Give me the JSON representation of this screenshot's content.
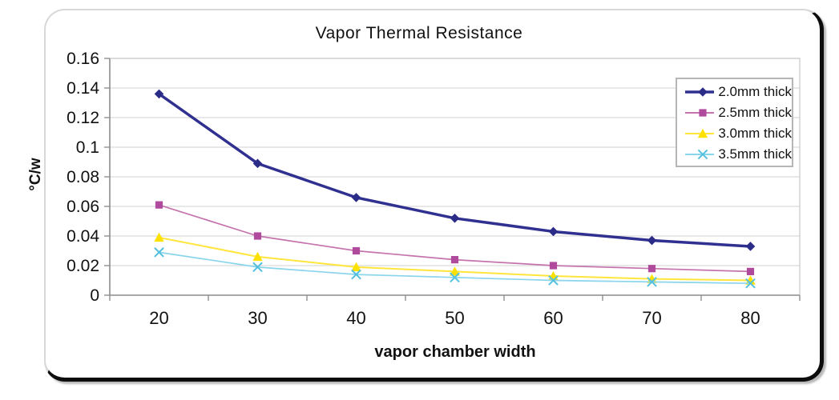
{
  "chart_data": {
    "type": "line",
    "title": "Vapor Thermal Resistance",
    "xlabel": "vapor chamber width",
    "ylabel": "°C/w",
    "categories": [
      20,
      30,
      40,
      50,
      60,
      70,
      80
    ],
    "ylim": [
      0,
      0.16
    ],
    "ytick_step": 0.02,
    "ytick_labels": [
      "0.16",
      "0.14",
      "0.12",
      "0.1",
      "0.08",
      "0.06",
      "0.04",
      "0.02",
      "0"
    ],
    "grid": true,
    "legend_position": "inside-top-right",
    "series": [
      {
        "name": "2.0mm thick",
        "marker": "diamond",
        "marker_color": "#2B2C88",
        "line_color": "#2F3090",
        "line_width": 3.5,
        "values": [
          0.136,
          0.089,
          0.066,
          0.052,
          0.043,
          0.037,
          0.033
        ]
      },
      {
        "name": "2.5mm thick",
        "marker": "square",
        "marker_color": "#B04A9D",
        "line_color": "#C573AC",
        "line_width": 1.7,
        "values": [
          0.061,
          0.04,
          0.03,
          0.024,
          0.02,
          0.018,
          0.016
        ]
      },
      {
        "name": "3.0mm thick",
        "marker": "triangle",
        "marker_color": "#FFE100",
        "line_color": "#FFE53C",
        "line_width": 2.0,
        "values": [
          0.039,
          0.026,
          0.019,
          0.016,
          0.013,
          0.011,
          0.01
        ]
      },
      {
        "name": "3.5mm thick",
        "marker": "x",
        "marker_color": "#54C0DF",
        "line_color": "#8AD4EC",
        "line_width": 1.7,
        "values": [
          0.029,
          0.019,
          0.014,
          0.012,
          0.01,
          0.009,
          0.008
        ]
      }
    ]
  },
  "style_colors": {
    "gridline": "#d9d9d9",
    "plot_border": "#c9c9c9",
    "axis": "#909090",
    "text": "#111111",
    "card_border_dark": "#0d0d0d",
    "card_border_light": "#d8d8d8"
  }
}
